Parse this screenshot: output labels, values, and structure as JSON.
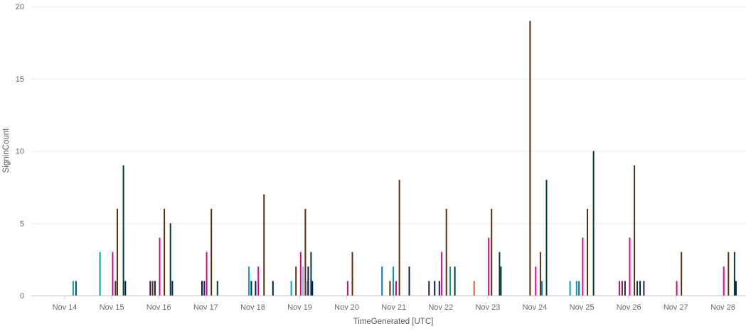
{
  "chart_data": {
    "type": "bar",
    "xlabel": "TimeGenerated [UTC]",
    "ylabel": "SigninCount",
    "ylim": [
      0,
      20
    ],
    "yticks": [
      0,
      5,
      10,
      15,
      20
    ],
    "grid": true,
    "categories": [
      "Nov 14",
      "Nov 15",
      "Nov 16",
      "Nov 17",
      "Nov 18",
      "Nov 19",
      "Nov 20",
      "Nov 21",
      "Nov 22",
      "Nov 23",
      "Nov 24",
      "Nov 25",
      "Nov 26",
      "Nov 27",
      "Nov 28"
    ],
    "points": [
      {
        "x": "Nov 14",
        "offset": 0.18,
        "y": 1,
        "color": "#00a2ad"
      },
      {
        "x": "Nov 14",
        "offset": 0.24,
        "y": 1,
        "color": "#004b50"
      },
      {
        "x": "Nov 15",
        "offset": -0.25,
        "y": 3,
        "color": "#00a2ad"
      },
      {
        "x": "Nov 15",
        "offset": 0.02,
        "y": 3,
        "color": "#e3008c"
      },
      {
        "x": "Nov 15",
        "offset": 0.08,
        "y": 1,
        "color": "#5c2e0b"
      },
      {
        "x": "Nov 15",
        "offset": 0.12,
        "y": 6,
        "color": "#5c2e0b"
      },
      {
        "x": "Nov 15",
        "offset": 0.25,
        "y": 9,
        "color": "#003d33"
      },
      {
        "x": "Nov 15",
        "offset": 0.29,
        "y": 1,
        "color": "#002050"
      },
      {
        "x": "Nov 16",
        "offset": -0.18,
        "y": 1,
        "color": "#32145a"
      },
      {
        "x": "Nov 16",
        "offset": -0.13,
        "y": 1,
        "color": "#5c2e0b"
      },
      {
        "x": "Nov 16",
        "offset": -0.08,
        "y": 1,
        "color": "#002050"
      },
      {
        "x": "Nov 16",
        "offset": 0.02,
        "y": 4,
        "color": "#e3008c"
      },
      {
        "x": "Nov 16",
        "offset": 0.12,
        "y": 6,
        "color": "#5c2e0b"
      },
      {
        "x": "Nov 16",
        "offset": 0.25,
        "y": 5,
        "color": "#003d33"
      },
      {
        "x": "Nov 16",
        "offset": 0.29,
        "y": 1,
        "color": "#002050"
      },
      {
        "x": "Nov 17",
        "offset": -0.08,
        "y": 1,
        "color": "#002050"
      },
      {
        "x": "Nov 17",
        "offset": -0.03,
        "y": 1,
        "color": "#32145a"
      },
      {
        "x": "Nov 17",
        "offset": 0.02,
        "y": 3,
        "color": "#e3008c"
      },
      {
        "x": "Nov 17",
        "offset": 0.12,
        "y": 6,
        "color": "#5c2e0b"
      },
      {
        "x": "Nov 17",
        "offset": 0.25,
        "y": 1,
        "color": "#003d33"
      },
      {
        "x": "Nov 18",
        "offset": -0.08,
        "y": 2,
        "color": "#00a2ad"
      },
      {
        "x": "Nov 18",
        "offset": -0.03,
        "y": 1,
        "color": "#002050"
      },
      {
        "x": "Nov 18",
        "offset": 0.06,
        "y": 1,
        "color": "#002050"
      },
      {
        "x": "Nov 18",
        "offset": 0.12,
        "y": 2,
        "color": "#e3008c"
      },
      {
        "x": "Nov 18",
        "offset": 0.24,
        "y": 7,
        "color": "#5c2e0b"
      },
      {
        "x": "Nov 18",
        "offset": 0.43,
        "y": 1,
        "color": "#002050"
      },
      {
        "x": "Nov 19",
        "offset": -0.18,
        "y": 1,
        "color": "#00a2ad"
      },
      {
        "x": "Nov 19",
        "offset": -0.08,
        "y": 2,
        "color": "#5c2e0b"
      },
      {
        "x": "Nov 19",
        "offset": 0.02,
        "y": 3,
        "color": "#e3008c"
      },
      {
        "x": "Nov 19",
        "offset": 0.07,
        "y": 2,
        "color": "#b4a0ff"
      },
      {
        "x": "Nov 19",
        "offset": 0.12,
        "y": 6,
        "color": "#5c2e0b"
      },
      {
        "x": "Nov 19",
        "offset": 0.16,
        "y": 1,
        "color": "#b4a0ff"
      },
      {
        "x": "Nov 19",
        "offset": 0.18,
        "y": 2,
        "color": "#002050"
      },
      {
        "x": "Nov 19",
        "offset": 0.24,
        "y": 3,
        "color": "#003d33"
      },
      {
        "x": "Nov 19",
        "offset": 0.27,
        "y": 1,
        "color": "#002050"
      },
      {
        "x": "Nov 20",
        "offset": 0.02,
        "y": 1,
        "color": "#e3008c"
      },
      {
        "x": "Nov 20",
        "offset": 0.12,
        "y": 3,
        "color": "#5c2e0b"
      },
      {
        "x": "Nov 21",
        "offset": -0.25,
        "y": 2,
        "color": "#0078d4"
      },
      {
        "x": "Nov 21",
        "offset": -0.08,
        "y": 1,
        "color": "#5c2e0b"
      },
      {
        "x": "Nov 21",
        "offset": -0.01,
        "y": 2,
        "color": "#00a2ad"
      },
      {
        "x": "Nov 21",
        "offset": 0.05,
        "y": 1,
        "color": "#e3008c"
      },
      {
        "x": "Nov 21",
        "offset": 0.12,
        "y": 8,
        "color": "#5c2e0b"
      },
      {
        "x": "Nov 21",
        "offset": 0.33,
        "y": 2,
        "color": "#002050"
      },
      {
        "x": "Nov 22",
        "offset": -0.25,
        "y": 1,
        "color": "#32145a"
      },
      {
        "x": "Nov 22",
        "offset": -0.13,
        "y": 1,
        "color": "#002050"
      },
      {
        "x": "Nov 22",
        "offset": -0.03,
        "y": 1,
        "color": "#32145a"
      },
      {
        "x": "Nov 22",
        "offset": 0.02,
        "y": 3,
        "color": "#e3008c"
      },
      {
        "x": "Nov 22",
        "offset": 0.12,
        "y": 6,
        "color": "#5c2e0b"
      },
      {
        "x": "Nov 22",
        "offset": 0.2,
        "y": 2,
        "color": "#00a2ad"
      },
      {
        "x": "Nov 22",
        "offset": 0.3,
        "y": 2,
        "color": "#003d33"
      },
      {
        "x": "Nov 23",
        "offset": -0.29,
        "y": 1,
        "color": "#e05d24"
      },
      {
        "x": "Nov 23",
        "offset": 0.02,
        "y": 4,
        "color": "#e3008c"
      },
      {
        "x": "Nov 23",
        "offset": 0.08,
        "y": 6,
        "color": "#5c2e0b"
      },
      {
        "x": "Nov 23",
        "offset": 0.25,
        "y": 3,
        "color": "#003d33"
      },
      {
        "x": "Nov 23",
        "offset": 0.28,
        "y": 2,
        "color": "#003d33"
      },
      {
        "x": "Nov 24",
        "offset": -0.1,
        "y": 19,
        "color": "#5c2e0b"
      },
      {
        "x": "Nov 24",
        "offset": 0.02,
        "y": 2,
        "color": "#e3008c"
      },
      {
        "x": "Nov 24",
        "offset": 0.12,
        "y": 3,
        "color": "#5c2e0b"
      },
      {
        "x": "Nov 24",
        "offset": 0.15,
        "y": 1,
        "color": "#0078d4"
      },
      {
        "x": "Nov 24",
        "offset": 0.25,
        "y": 8,
        "color": "#003d33"
      },
      {
        "x": "Nov 25",
        "offset": -0.25,
        "y": 1,
        "color": "#00a2ad"
      },
      {
        "x": "Nov 25",
        "offset": -0.11,
        "y": 1,
        "color": "#00a2ad"
      },
      {
        "x": "Nov 25",
        "offset": -0.06,
        "y": 1,
        "color": "#0078d4"
      },
      {
        "x": "Nov 25",
        "offset": 0.02,
        "y": 4,
        "color": "#e3008c"
      },
      {
        "x": "Nov 25",
        "offset": 0.12,
        "y": 6,
        "color": "#5c2e0b"
      },
      {
        "x": "Nov 25",
        "offset": 0.25,
        "y": 10,
        "color": "#003d33"
      },
      {
        "x": "Nov 26",
        "offset": -0.2,
        "y": 1,
        "color": "#e3008c"
      },
      {
        "x": "Nov 26",
        "offset": -0.14,
        "y": 1,
        "color": "#5c2e0b"
      },
      {
        "x": "Nov 26",
        "offset": -0.08,
        "y": 1,
        "color": "#32145a"
      },
      {
        "x": "Nov 26",
        "offset": 0.02,
        "y": 4,
        "color": "#e3008c"
      },
      {
        "x": "Nov 26",
        "offset": 0.12,
        "y": 9,
        "color": "#5c2e0b"
      },
      {
        "x": "Nov 26",
        "offset": 0.18,
        "y": 1,
        "color": "#003d33"
      },
      {
        "x": "Nov 26",
        "offset": 0.24,
        "y": 1,
        "color": "#002050"
      },
      {
        "x": "Nov 26",
        "offset": 0.32,
        "y": 1,
        "color": "#32145a"
      },
      {
        "x": "Nov 27",
        "offset": 0.02,
        "y": 1,
        "color": "#e3008c"
      },
      {
        "x": "Nov 27",
        "offset": 0.12,
        "y": 3,
        "color": "#5c2e0b"
      },
      {
        "x": "Nov 28",
        "offset": 0.02,
        "y": 2,
        "color": "#e3008c"
      },
      {
        "x": "Nov 28",
        "offset": 0.12,
        "y": 3,
        "color": "#5c2e0b"
      },
      {
        "x": "Nov 28",
        "offset": 0.25,
        "y": 3,
        "color": "#003d33"
      },
      {
        "x": "Nov 28",
        "offset": 0.28,
        "y": 1,
        "color": "#002050"
      }
    ]
  }
}
